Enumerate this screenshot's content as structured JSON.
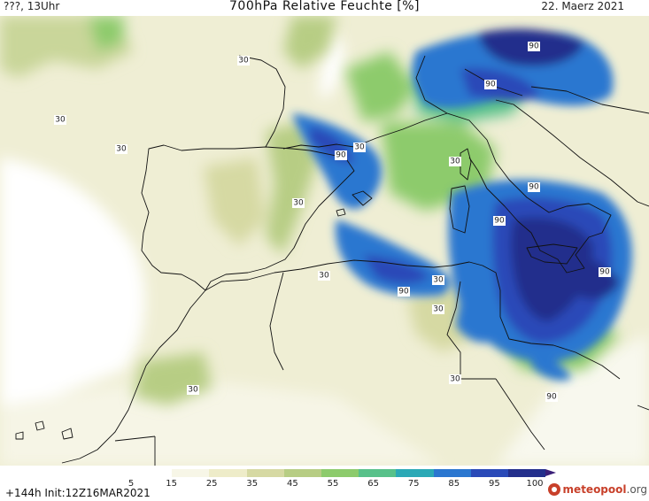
{
  "header": {
    "left": "???, 13Uhr",
    "title": "700hPa Relative Feuchte [%]",
    "date": "22. Maerz 2021"
  },
  "footer": {
    "run_info": "+144h Init:12Z16MAR2021",
    "brand_main": "meteopool",
    "brand_tld": ".org"
  },
  "legend": {
    "ticks": [
      "5",
      "15",
      "25",
      "35",
      "45",
      "55",
      "65",
      "75",
      "85",
      "95",
      "100"
    ],
    "colors": [
      "#ffffff",
      "#f7f6e7",
      "#eeecc9",
      "#d6d9a3",
      "#b7cd84",
      "#8dcb6c",
      "#58c18a",
      "#2ba9b6",
      "#2b77d0",
      "#2a4ab8",
      "#232f8c",
      "#3a1f78"
    ]
  },
  "contour_labels": [
    "30",
    "30",
    "30",
    "30",
    "90",
    "90",
    "90",
    "30",
    "30",
    "90",
    "90",
    "90",
    "30",
    "30",
    "90",
    "30",
    "30",
    "30",
    "90",
    "30",
    "30"
  ]
}
